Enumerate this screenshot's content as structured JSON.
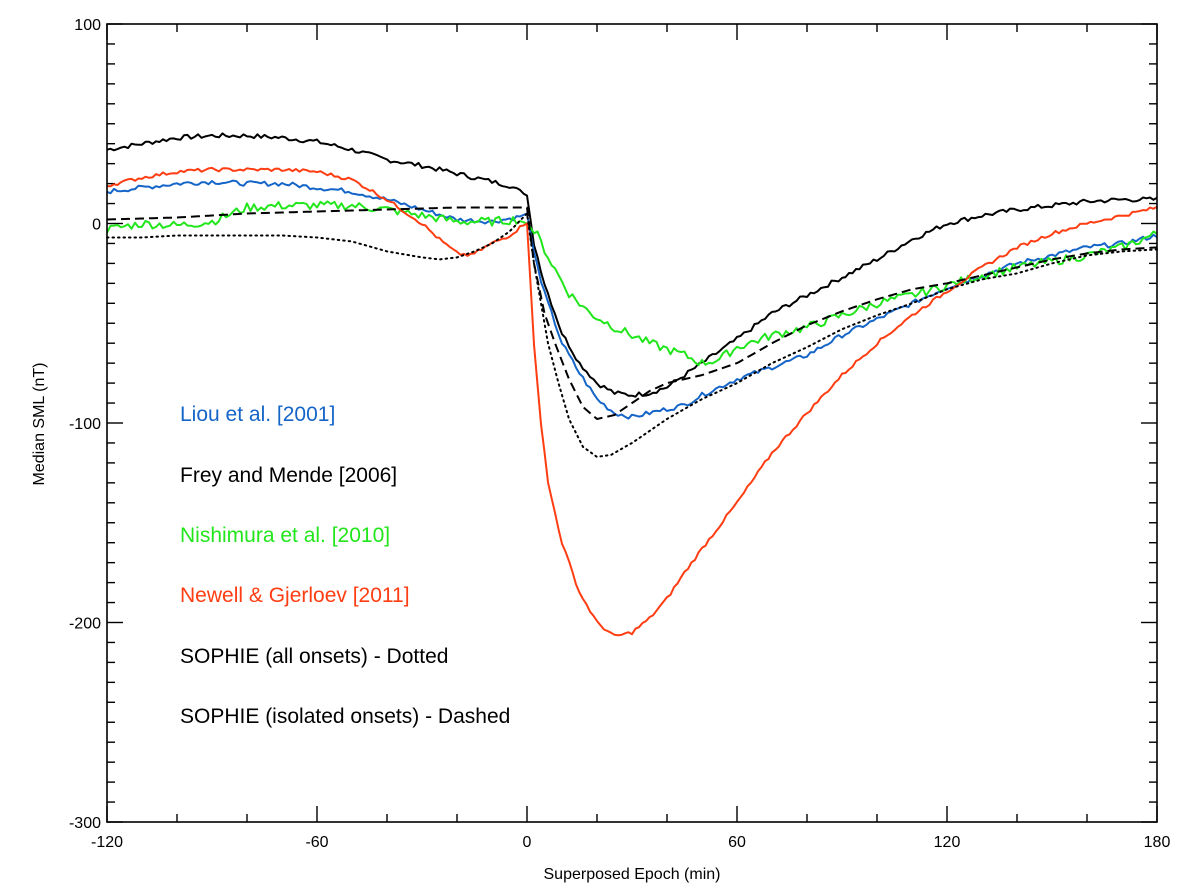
{
  "chart_data": {
    "type": "line",
    "title": "",
    "xlabel": "Superposed Epoch (min)",
    "ylabel": "Median SML (nT)",
    "xlim": [
      -120,
      180
    ],
    "ylim": [
      -300,
      100
    ],
    "x_ticks": [
      -120,
      -60,
      0,
      60,
      120,
      180
    ],
    "x_tick_labels": [
      "-120",
      "-60",
      "0",
      "60",
      "120",
      "180"
    ],
    "y_ticks": [
      100,
      0,
      -100,
      -200,
      -300
    ],
    "y_tick_labels": [
      "100",
      "0",
      "-100",
      "-200",
      "-300"
    ],
    "grid": false,
    "legend_placement": "left (inside plot, lower-left)",
    "legend": [
      {
        "text": "Liou et al. [2001]",
        "color": "#1565c8"
      },
      {
        "text": "Frey and Mende [2006]",
        "color": "#000000"
      },
      {
        "text": "Nishimura et al. [2010]",
        "color": "#22e61c"
      },
      {
        "text": "Newell & Gjerloev [2011]",
        "color": "#ff3d12"
      },
      {
        "text": "SOPHIE (all onsets) - Dotted",
        "color": "#000000"
      },
      {
        "text": "SOPHIE (isolated onsets) - Dashed",
        "color": "#000000"
      }
    ],
    "series": [
      {
        "name": "Frey and Mende [2006]",
        "color": "#000000",
        "style": "solid",
        "noise": 1.2,
        "points": [
          [
            -120,
            37
          ],
          [
            -110,
            40
          ],
          [
            -100,
            43
          ],
          [
            -90,
            44
          ],
          [
            -80,
            44
          ],
          [
            -70,
            43
          ],
          [
            -60,
            41
          ],
          [
            -50,
            37
          ],
          [
            -40,
            32
          ],
          [
            -30,
            29
          ],
          [
            -20,
            25
          ],
          [
            -10,
            21
          ],
          [
            -5,
            19
          ],
          [
            0,
            14
          ],
          [
            2,
            -10
          ],
          [
            5,
            -30
          ],
          [
            10,
            -55
          ],
          [
            15,
            -70
          ],
          [
            20,
            -80
          ],
          [
            25,
            -85
          ],
          [
            30,
            -86
          ],
          [
            35,
            -85
          ],
          [
            40,
            -82
          ],
          [
            45,
            -76
          ],
          [
            50,
            -70
          ],
          [
            55,
            -64
          ],
          [
            60,
            -58
          ],
          [
            70,
            -45
          ],
          [
            80,
            -36
          ],
          [
            90,
            -27
          ],
          [
            100,
            -18
          ],
          [
            110,
            -8
          ],
          [
            120,
            0
          ],
          [
            130,
            4
          ],
          [
            140,
            7
          ],
          [
            150,
            9
          ],
          [
            160,
            11
          ],
          [
            170,
            12
          ],
          [
            180,
            12
          ]
        ]
      },
      {
        "name": "Liou et al. [2001]",
        "color": "#1565c8",
        "style": "solid",
        "noise": 1.2,
        "points": [
          [
            -120,
            16
          ],
          [
            -110,
            18
          ],
          [
            -100,
            20
          ],
          [
            -90,
            21
          ],
          [
            -80,
            20
          ],
          [
            -70,
            20
          ],
          [
            -60,
            18
          ],
          [
            -50,
            16
          ],
          [
            -40,
            12
          ],
          [
            -30,
            7
          ],
          [
            -20,
            2
          ],
          [
            -10,
            1
          ],
          [
            -3,
            3
          ],
          [
            0,
            5
          ],
          [
            2,
            -15
          ],
          [
            5,
            -35
          ],
          [
            10,
            -60
          ],
          [
            15,
            -75
          ],
          [
            20,
            -88
          ],
          [
            25,
            -95
          ],
          [
            30,
            -97
          ],
          [
            35,
            -95
          ],
          [
            40,
            -93
          ],
          [
            45,
            -91
          ],
          [
            50,
            -86
          ],
          [
            60,
            -78
          ],
          [
            70,
            -72
          ],
          [
            80,
            -66
          ],
          [
            90,
            -56
          ],
          [
            100,
            -48
          ],
          [
            110,
            -40
          ],
          [
            120,
            -32
          ],
          [
            130,
            -26
          ],
          [
            140,
            -20
          ],
          [
            150,
            -16
          ],
          [
            160,
            -12
          ],
          [
            170,
            -10
          ],
          [
            180,
            -6
          ]
        ]
      },
      {
        "name": "Nishimura et al. [2010]",
        "color": "#22e61c",
        "style": "solid",
        "noise": 2.2,
        "points": [
          [
            -120,
            -3
          ],
          [
            -110,
            0
          ],
          [
            -100,
            -1
          ],
          [
            -90,
            1
          ],
          [
            -80,
            8
          ],
          [
            -70,
            9
          ],
          [
            -60,
            9
          ],
          [
            -50,
            9
          ],
          [
            -40,
            7
          ],
          [
            -30,
            4
          ],
          [
            -20,
            1
          ],
          [
            -10,
            1
          ],
          [
            -3,
            2
          ],
          [
            0,
            0
          ],
          [
            3,
            -6
          ],
          [
            7,
            -20
          ],
          [
            12,
            -35
          ],
          [
            18,
            -45
          ],
          [
            25,
            -52
          ],
          [
            30,
            -56
          ],
          [
            35,
            -60
          ],
          [
            40,
            -63
          ],
          [
            45,
            -66
          ],
          [
            50,
            -70
          ],
          [
            55,
            -68
          ],
          [
            60,
            -62
          ],
          [
            70,
            -56
          ],
          [
            80,
            -52
          ],
          [
            90,
            -46
          ],
          [
            100,
            -40
          ],
          [
            110,
            -36
          ],
          [
            120,
            -31
          ],
          [
            130,
            -26
          ],
          [
            140,
            -22
          ],
          [
            150,
            -19
          ],
          [
            160,
            -16
          ],
          [
            170,
            -12
          ],
          [
            180,
            -5
          ]
        ]
      },
      {
        "name": "Newell & Gjerloev [2011]",
        "color": "#ff3d12",
        "style": "solid",
        "noise": 0.9,
        "points": [
          [
            -120,
            19
          ],
          [
            -110,
            23
          ],
          [
            -100,
            26
          ],
          [
            -90,
            27
          ],
          [
            -80,
            27
          ],
          [
            -70,
            27
          ],
          [
            -60,
            26
          ],
          [
            -50,
            22
          ],
          [
            -40,
            12
          ],
          [
            -30,
            0
          ],
          [
            -25,
            -8
          ],
          [
            -20,
            -15
          ],
          [
            -16,
            -16
          ],
          [
            -10,
            -10
          ],
          [
            -5,
            -6
          ],
          [
            -2,
            -2
          ],
          [
            0,
            0
          ],
          [
            1,
            -30
          ],
          [
            2,
            -60
          ],
          [
            4,
            -100
          ],
          [
            6,
            -130
          ],
          [
            10,
            -160
          ],
          [
            15,
            -185
          ],
          [
            20,
            -200
          ],
          [
            25,
            -207
          ],
          [
            30,
            -205
          ],
          [
            35,
            -198
          ],
          [
            40,
            -188
          ],
          [
            45,
            -175
          ],
          [
            50,
            -163
          ],
          [
            60,
            -140
          ],
          [
            70,
            -115
          ],
          [
            80,
            -95
          ],
          [
            90,
            -76
          ],
          [
            100,
            -60
          ],
          [
            110,
            -46
          ],
          [
            120,
            -34
          ],
          [
            130,
            -22
          ],
          [
            140,
            -12
          ],
          [
            150,
            -5
          ],
          [
            160,
            0
          ],
          [
            170,
            4
          ],
          [
            180,
            8
          ]
        ]
      },
      {
        "name": "SOPHIE (all onsets) - Dotted",
        "color": "#000000",
        "style": "dotted",
        "noise": 0,
        "points": [
          [
            -120,
            -7
          ],
          [
            -110,
            -7
          ],
          [
            -100,
            -6
          ],
          [
            -90,
            -6
          ],
          [
            -80,
            -6
          ],
          [
            -70,
            -6
          ],
          [
            -60,
            -7
          ],
          [
            -50,
            -9
          ],
          [
            -40,
            -14
          ],
          [
            -30,
            -17
          ],
          [
            -25,
            -18
          ],
          [
            -20,
            -17
          ],
          [
            -15,
            -14
          ],
          [
            -10,
            -10
          ],
          [
            -5,
            -4
          ],
          [
            0,
            5
          ],
          [
            2,
            -20
          ],
          [
            4,
            -40
          ],
          [
            6,
            -60
          ],
          [
            9,
            -80
          ],
          [
            12,
            -98
          ],
          [
            16,
            -112
          ],
          [
            20,
            -117
          ],
          [
            24,
            -116
          ],
          [
            30,
            -110
          ],
          [
            40,
            -98
          ],
          [
            50,
            -88
          ],
          [
            60,
            -80
          ],
          [
            70,
            -70
          ],
          [
            80,
            -62
          ],
          [
            90,
            -53
          ],
          [
            100,
            -46
          ],
          [
            110,
            -40
          ],
          [
            120,
            -33
          ],
          [
            130,
            -28
          ],
          [
            140,
            -25
          ],
          [
            150,
            -20
          ],
          [
            160,
            -16
          ],
          [
            170,
            -14
          ],
          [
            180,
            -13
          ]
        ]
      },
      {
        "name": "SOPHIE (isolated onsets) - Dashed",
        "color": "#000000",
        "style": "dashed",
        "noise": 0,
        "points": [
          [
            -120,
            2
          ],
          [
            -100,
            3
          ],
          [
            -80,
            5
          ],
          [
            -60,
            6
          ],
          [
            -40,
            7
          ],
          [
            -20,
            8
          ],
          [
            0,
            8
          ],
          [
            2,
            -20
          ],
          [
            5,
            -45
          ],
          [
            8,
            -60
          ],
          [
            12,
            -78
          ],
          [
            16,
            -92
          ],
          [
            20,
            -98
          ],
          [
            25,
            -96
          ],
          [
            30,
            -90
          ],
          [
            35,
            -84
          ],
          [
            40,
            -80
          ],
          [
            50,
            -76
          ],
          [
            60,
            -70
          ],
          [
            70,
            -60
          ],
          [
            80,
            -51
          ],
          [
            90,
            -44
          ],
          [
            100,
            -38
          ],
          [
            110,
            -33
          ],
          [
            120,
            -30
          ],
          [
            130,
            -26
          ],
          [
            140,
            -22
          ],
          [
            150,
            -18
          ],
          [
            160,
            -15
          ],
          [
            170,
            -13
          ],
          [
            180,
            -12
          ]
        ]
      }
    ]
  }
}
